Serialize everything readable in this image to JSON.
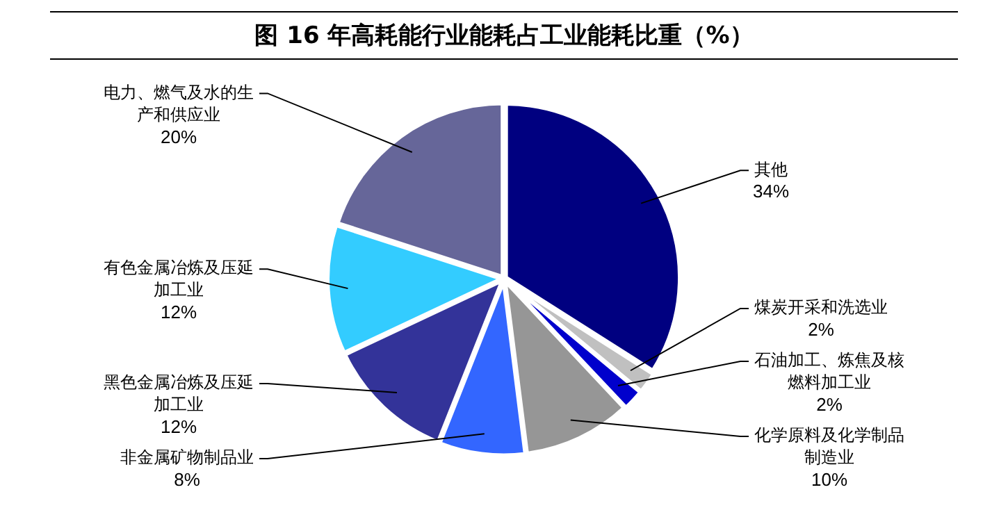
{
  "chart_data": {
    "type": "pie",
    "title": "图 16 年高耗能行业能耗占工业能耗比重（%）",
    "categories": [
      "其他",
      "煤炭开采和洗选业",
      "石油加工、炼焦及核燃料加工业",
      "化学原料及化学制品制造业",
      "非金属矿物制品业",
      "黑色金属冶炼及压延加工业",
      "有色金属冶炼及压延加工业",
      "电力、燃气及水的生产和供应业"
    ],
    "values": [
      34,
      2,
      2,
      10,
      8,
      12,
      12,
      20
    ],
    "colors": [
      "#000080",
      "#c0c0c0",
      "#0000cc",
      "#969696",
      "#3366ff",
      "#333399",
      "#33ccff",
      "#666699"
    ],
    "value_labels": [
      "34%",
      "2%",
      "2%",
      "10%",
      "8%",
      "12%",
      "12%",
      "20%"
    ],
    "legend": false
  }
}
